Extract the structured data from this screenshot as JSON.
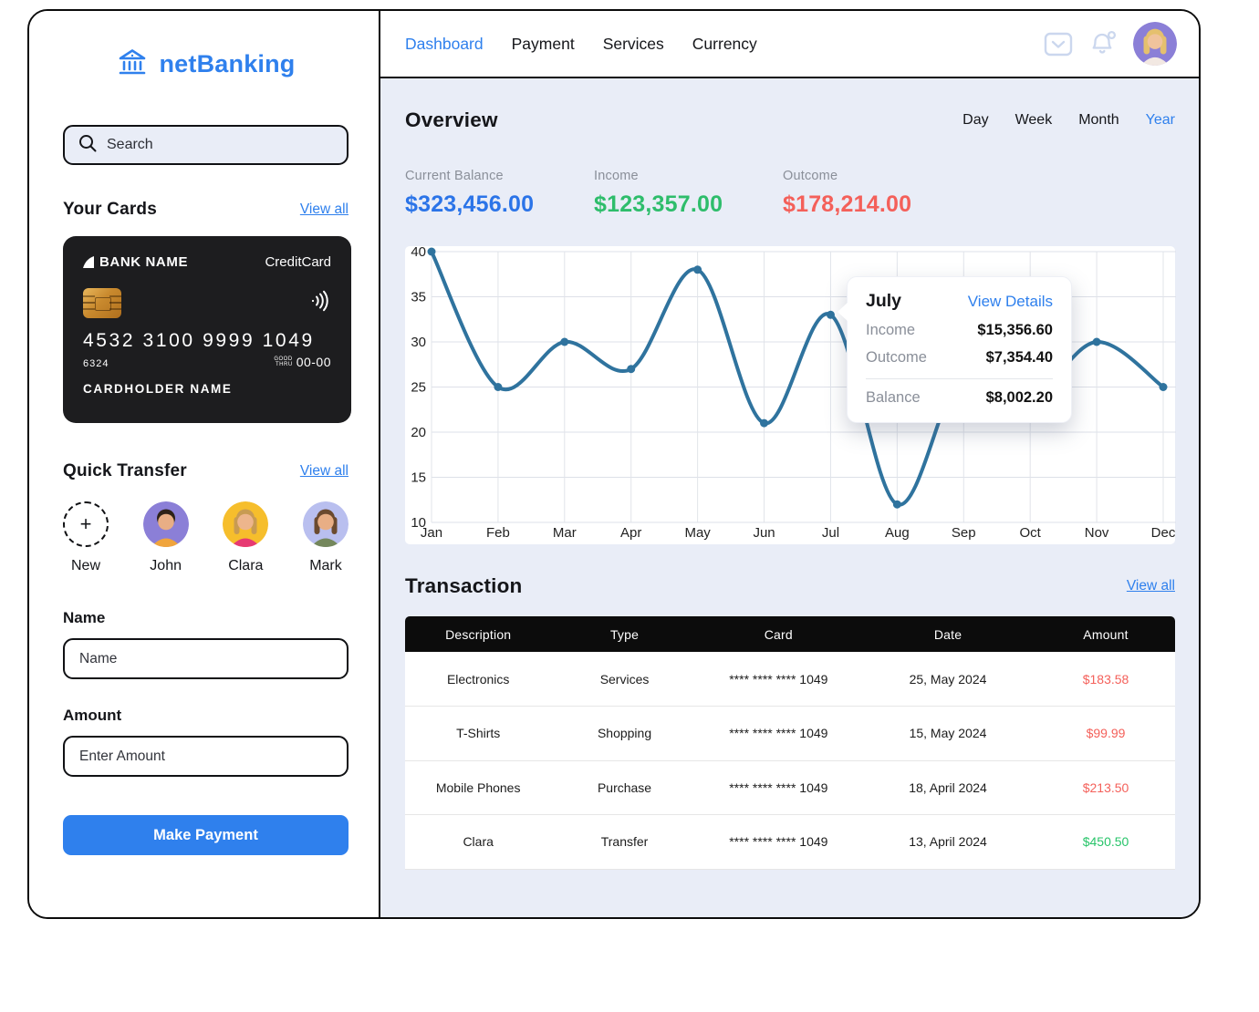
{
  "app": {
    "accent": "#2F80ED",
    "content_bg": "#E9EDF7",
    "border": "#0B0B0B"
  },
  "sidebar": {
    "logo": {
      "text": "netBanking",
      "icon": "bank-icon",
      "color": "#2F80ED"
    },
    "search": {
      "placeholder": "Search",
      "icon": "search-icon"
    },
    "your_cards": {
      "title": "Your Cards",
      "view_all": "View all"
    },
    "card": {
      "bank_label": "BANK NAME",
      "brand": "CreditCard",
      "number": "4532 3100 9999 1049",
      "code": "6324",
      "valid_label": "GOOD THRU",
      "valid_value": "00-00",
      "holder": "CARDHOLDER NAME"
    },
    "quick_transfer": {
      "title": "Quick Transfer",
      "view_all": "View all",
      "contacts": [
        {
          "label": "New",
          "type": "add"
        },
        {
          "label": "John",
          "type": "avatar",
          "bg": "#8B7FD7",
          "hair": "#2E2218",
          "skin": "#E8AE85",
          "shirt": "#F0A43C"
        },
        {
          "label": "Clara",
          "type": "avatar",
          "bg": "#F6BE2C",
          "hair": "#C89B52",
          "skin": "#EDB58C",
          "shirt": "#E73A72"
        },
        {
          "label": "Mark",
          "type": "avatar",
          "bg": "#B9BFEF",
          "hair": "#6B4A2F",
          "skin": "#E8AE85",
          "shirt": "#74875C"
        }
      ]
    },
    "transfer_form": {
      "name_label": "Name",
      "name_placeholder": "Name",
      "amount_label": "Amount",
      "amount_placeholder": "Enter Amount",
      "submit_label": "Make Payment"
    }
  },
  "topnav": {
    "items": [
      "Dashboard",
      "Payment",
      "Services",
      "Currency"
    ],
    "active_item": "Dashboard",
    "icons": [
      "mail-icon",
      "bell-icon"
    ],
    "user": {
      "bg": "#8B7FD7",
      "hair": "#E5C06E",
      "skin": "#F0C39C",
      "shirt": "#F2E8E2"
    }
  },
  "overview": {
    "title": "Overview",
    "periods": [
      "Day",
      "Week",
      "Month",
      "Year"
    ],
    "active_period": "Year",
    "stats": [
      {
        "label": "Current Balance",
        "value": "$323,456.00",
        "color": "#2B74E8"
      },
      {
        "label": "Income",
        "value": "$123,357.00",
        "color": "#2EBD6B"
      },
      {
        "label": "Outcome",
        "value": "$178,214.00",
        "color": "#F4605A"
      }
    ],
    "tooltip": {
      "month": "July",
      "link": "View Details",
      "income_label": "Income",
      "income_value": "$15,356.60",
      "outcome_label": "Outcome",
      "outcome_value": "$7,354.40",
      "balance_label": "Balance",
      "balance_value": "$8,002.20"
    }
  },
  "chart_data": {
    "type": "line",
    "x": [
      "Jan",
      "Feb",
      "Mar",
      "Apr",
      "May",
      "Jun",
      "Jul",
      "Aug",
      "Sep",
      "Oct",
      "Nov",
      "Dec"
    ],
    "values": [
      40,
      25,
      30,
      27,
      38,
      21,
      33,
      12,
      27,
      24,
      30,
      25
    ],
    "ylim": [
      10,
      40
    ],
    "yticks": [
      10,
      15,
      20,
      25,
      30,
      35,
      40
    ],
    "line_color": "#2F739E",
    "grid": true,
    "legend": "none",
    "highlight_point": "Jul"
  },
  "transactions": {
    "title": "Transaction",
    "view_all": "View all",
    "columns": [
      "Description",
      "Type",
      "Card",
      "Date",
      "Amount"
    ],
    "rows": [
      {
        "description": "Electronics",
        "type": "Services",
        "card": "**** **** **** 1049",
        "date": "25, May 2024",
        "amount": "$183.58",
        "amount_color": "#F4605A"
      },
      {
        "description": "T-Shirts",
        "type": "Shopping",
        "card": "**** **** **** 1049",
        "date": "15, May 2024",
        "amount": "$99.99",
        "amount_color": "#F4605A"
      },
      {
        "description": "Mobile Phones",
        "type": "Purchase",
        "card": "**** **** **** 1049",
        "date": "18, April 2024",
        "amount": "$213.50",
        "amount_color": "#F4605A"
      },
      {
        "description": "Clara",
        "type": "Transfer",
        "card": "**** **** **** 1049",
        "date": "13, April 2024",
        "amount": "$450.50",
        "amount_color": "#27C469"
      }
    ]
  }
}
